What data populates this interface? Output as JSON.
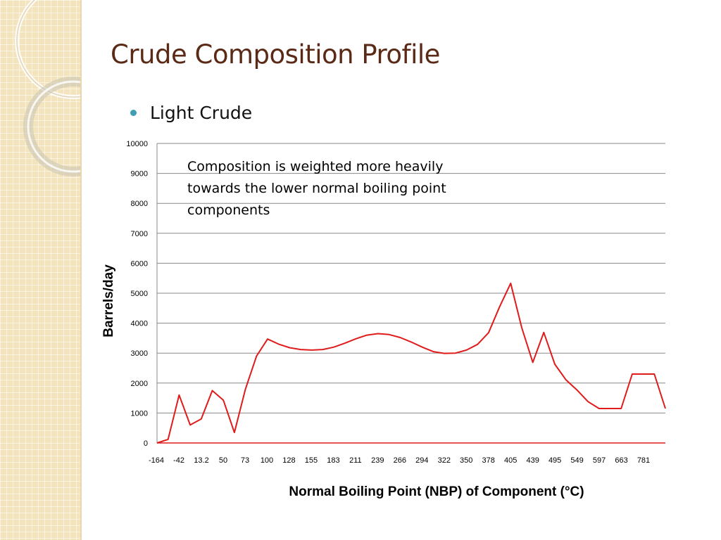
{
  "slide": {
    "title": "Crude Composition Profile",
    "bullet": "Light Crude"
  },
  "colors": {
    "title": "#5a2a17",
    "bullet": "#3d9fb3",
    "series": "#e01b1b",
    "sidebar": "#f3e4bd"
  },
  "chart_data": {
    "type": "line",
    "xlabel": "Normal Boiling Point (NBP) of Component (°C)",
    "ylabel": "Barrels/day",
    "ylim": [
      0,
      10000
    ],
    "yticks": [
      "0",
      "1000",
      "2000",
      "3000",
      "4000",
      "5000",
      "6000",
      "7000",
      "8000",
      "9000",
      "10000"
    ],
    "x_tick_labels": [
      "-164",
      "-42",
      "13.2",
      "50",
      "73",
      "100",
      "128",
      "155",
      "183",
      "211",
      "239",
      "266",
      "294",
      "322",
      "350",
      "378",
      "405",
      "439",
      "495",
      "549",
      "597",
      "663",
      "781"
    ],
    "grid": true,
    "annotation": "Composition is weighted more heavily towards the lower normal boiling point components",
    "series": [
      {
        "values": [
          0,
          120,
          1600,
          600,
          800,
          1750,
          1430,
          350,
          1800,
          2900,
          3470,
          3300,
          3180,
          3120,
          3100,
          3120,
          3200,
          3330,
          3480,
          3600,
          3650,
          3620,
          3520,
          3370,
          3200,
          3050,
          2990,
          3000,
          3100,
          3290,
          3680,
          4550,
          5330,
          3850,
          2690,
          3690,
          2630,
          2110,
          1770,
          1380,
          1150,
          1150,
          1150,
          2300,
          2300,
          2300,
          1150
        ]
      }
    ]
  }
}
